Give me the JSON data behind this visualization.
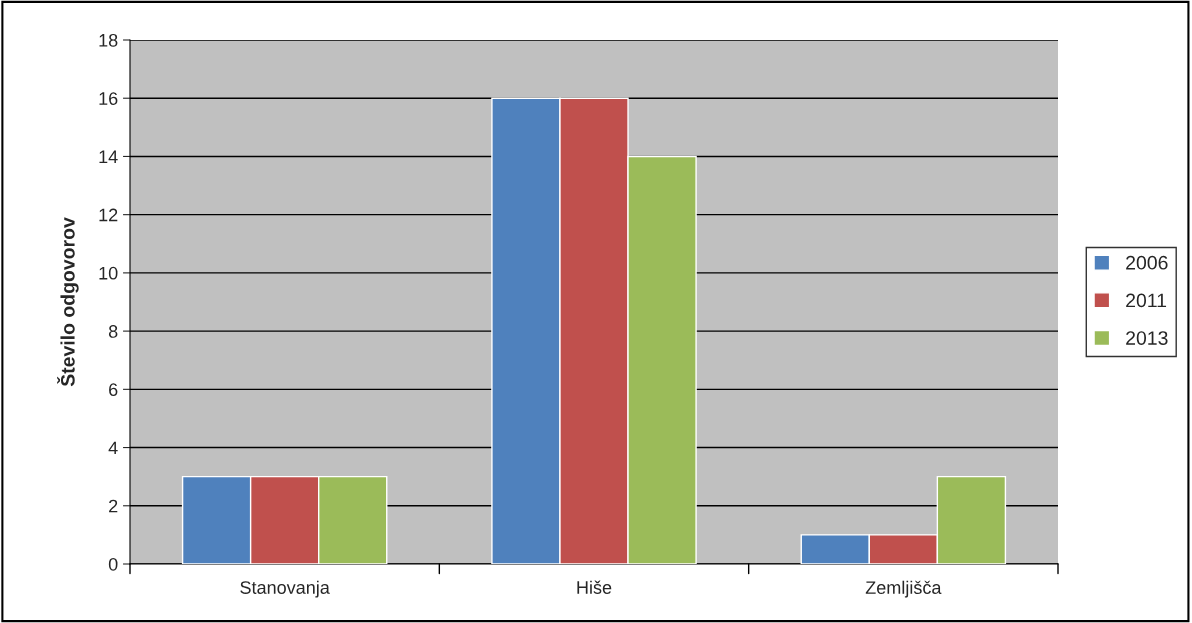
{
  "chart_data": {
    "type": "bar",
    "ylabel": "Število odgovorov",
    "categories": [
      "Stanovanja",
      "Hiše",
      "Zemljišča"
    ],
    "series": [
      {
        "name": "2006",
        "color": "#4f81bd",
        "values": [
          3,
          16,
          1
        ]
      },
      {
        "name": "2011",
        "color": "#c0504d",
        "values": [
          3,
          16,
          1
        ]
      },
      {
        "name": "2013",
        "color": "#9bbb59",
        "values": [
          3,
          14,
          3
        ]
      }
    ],
    "ylim": [
      0,
      18
    ],
    "yticks": [
      0,
      2,
      4,
      6,
      8,
      10,
      12,
      14,
      16,
      18
    ],
    "grid": "y",
    "legend": "right"
  }
}
